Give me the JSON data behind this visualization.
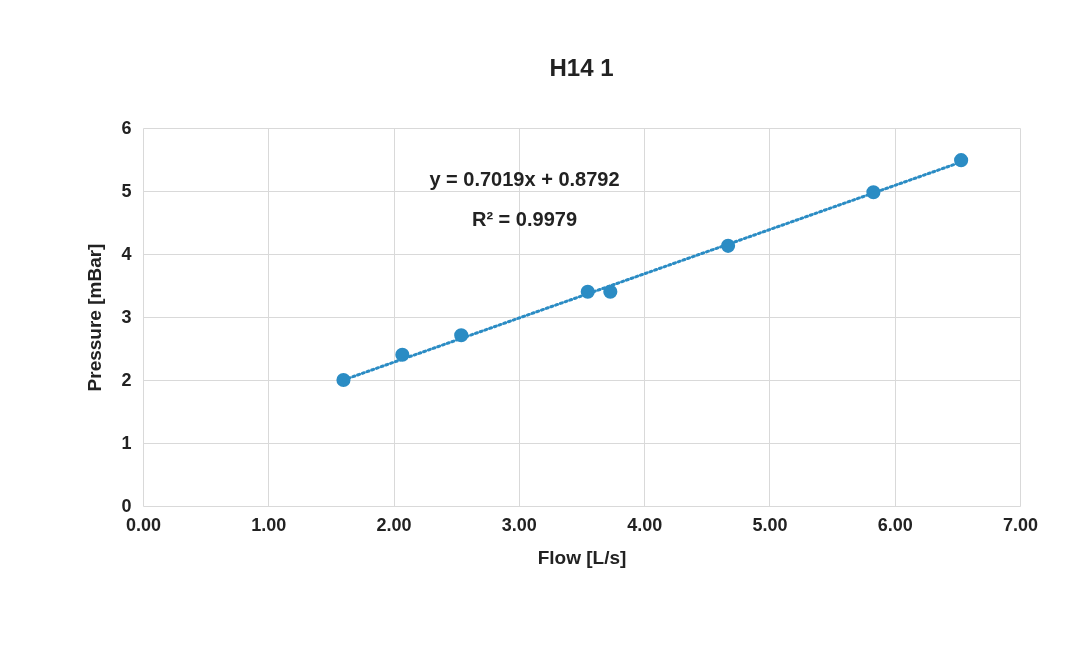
{
  "chart_data": {
    "type": "scatter",
    "title": "H14 1",
    "xlabel": "Flow [L/s]",
    "ylabel": "Pressure [mBar]",
    "xlim": [
      0,
      7
    ],
    "xticks": [
      {
        "value": 0,
        "label": "0.00"
      },
      {
        "value": 1,
        "label": "1.00"
      },
      {
        "value": 2,
        "label": "2.00"
      },
      {
        "value": 3,
        "label": "3.00"
      },
      {
        "value": 4,
        "label": "4.00"
      },
      {
        "value": 5,
        "label": "5.00"
      },
      {
        "value": 6,
        "label": "6.00"
      },
      {
        "value": 7,
        "label": "7.00"
      }
    ],
    "ylim": [
      0,
      6
    ],
    "yticks": [
      0,
      1,
      2,
      3,
      4,
      5,
      6
    ],
    "grid": true,
    "marker": "circle",
    "series": [
      {
        "type": "scatter",
        "color": "#2b8cc4",
        "x": [
          1.6,
          2.07,
          2.54,
          3.55,
          3.73,
          4.67,
          5.83,
          6.53
        ],
        "values": [
          2.0,
          2.4,
          2.71,
          3.4,
          3.4,
          4.13,
          4.98,
          5.49
        ]
      },
      {
        "type": "line",
        "color": "#2b8cc4",
        "line_style": "dotted",
        "marker": "none",
        "x": [
          1.6,
          6.53
        ],
        "values": [
          2.0,
          5.46
        ]
      }
    ],
    "annotations": [
      "y = 0.7019x + 0.8792",
      "R² = 0.9979"
    ]
  }
}
